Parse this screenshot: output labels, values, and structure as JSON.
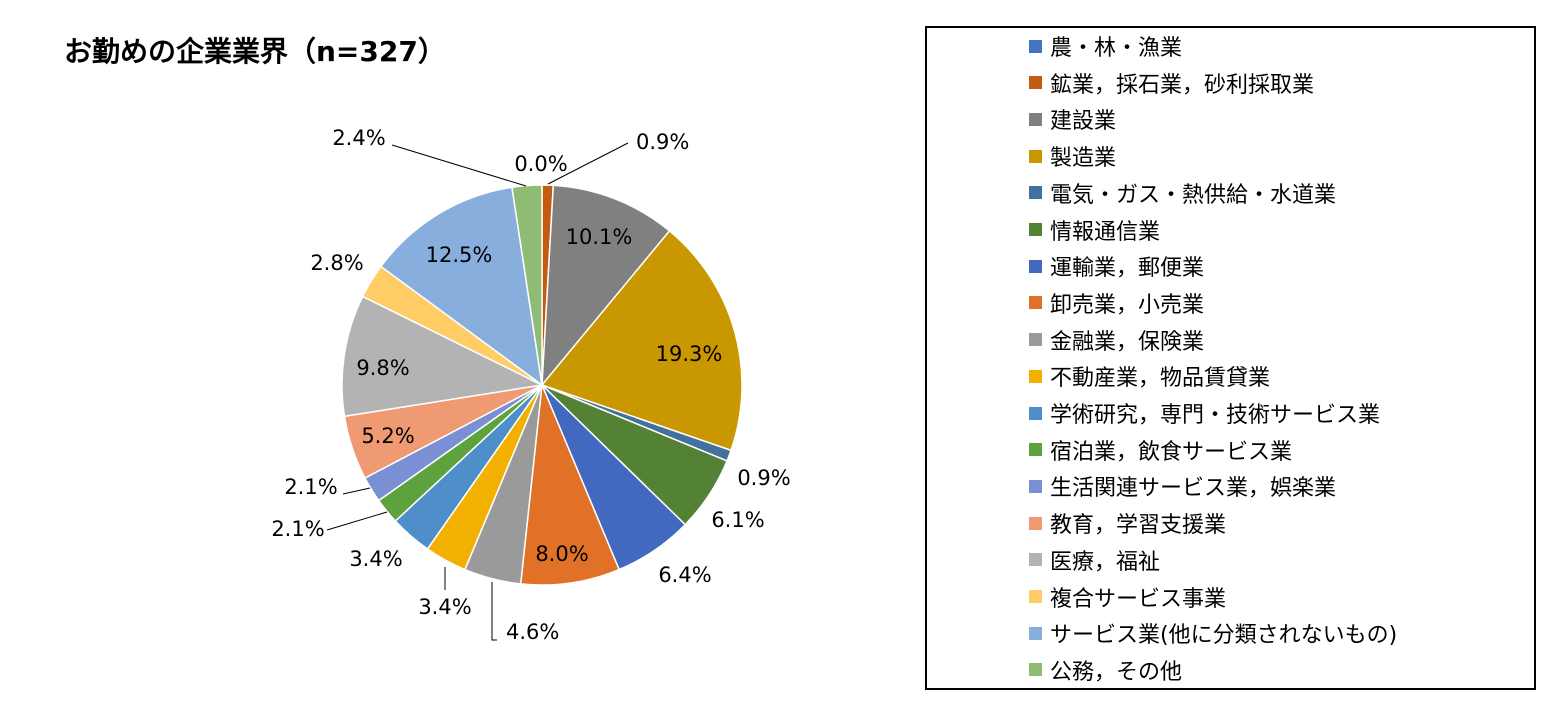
{
  "chart_data": {
    "type": "pie",
    "title": "お勤めの企業業界（n=327）",
    "legend_position": "right",
    "slices": [
      {
        "label": "農・林・漁業",
        "value": 0.0,
        "data_label": "0.0%",
        "color": "#4472C4"
      },
      {
        "label": "鉱業，採石業，砂利採取業",
        "value": 0.9,
        "data_label": "0.9%",
        "color": "#C55A11"
      },
      {
        "label": "建設業",
        "value": 10.1,
        "data_label": "10.1%",
        "color": "#808080"
      },
      {
        "label": "製造業",
        "value": 19.3,
        "data_label": "19.3%",
        "color": "#C99700"
      },
      {
        "label": "電気・ガス・熱供給・水道業",
        "value": 0.9,
        "data_label": "0.9%",
        "color": "#41719C"
      },
      {
        "label": "情報通信業",
        "value": 6.1,
        "data_label": "6.1%",
        "color": "#548235"
      },
      {
        "label": "運輸業，郵便業",
        "value": 6.4,
        "data_label": "6.4%",
        "color": "#4169C0"
      },
      {
        "label": "卸売業，小売業",
        "value": 8.0,
        "data_label": "8.0%",
        "color": "#E07126"
      },
      {
        "label": "金融業，保険業",
        "value": 4.6,
        "data_label": "4.6%",
        "color": "#9A9A9A"
      },
      {
        "label": "不動産業，物品賃貸業",
        "value": 3.4,
        "data_label": "3.4%",
        "color": "#F2B100"
      },
      {
        "label": "学術研究，専門・技術サービス業",
        "value": 3.4,
        "data_label": "3.4%",
        "color": "#4E8FC9"
      },
      {
        "label": "宿泊業，飲食サービス業",
        "value": 2.1,
        "data_label": "2.1%",
        "color": "#5EA23E"
      },
      {
        "label": "生活関連サービス業，娯楽業",
        "value": 2.1,
        "data_label": "2.1%",
        "color": "#7A8FD4"
      },
      {
        "label": "教育，学習支援業",
        "value": 5.2,
        "data_label": "5.2%",
        "color": "#EF9A72"
      },
      {
        "label": "医療，福祉",
        "value": 9.8,
        "data_label": "9.8%",
        "color": "#B3B3B3"
      },
      {
        "label": "複合サービス事業",
        "value": 2.8,
        "data_label": "2.8%",
        "color": "#FFCC66"
      },
      {
        "label": "サービス業(他に分類されないもの)",
        "value": 12.5,
        "data_label": "12.5%",
        "color": "#88AEDD"
      },
      {
        "label": "公務，その他",
        "value": 2.4,
        "data_label": "2.4%",
        "color": "#8FBC74"
      }
    ]
  }
}
